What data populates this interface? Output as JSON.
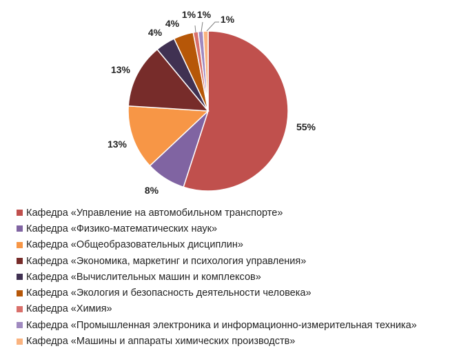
{
  "chart_data": {
    "type": "pie",
    "title": "",
    "legend_position": "bottom",
    "slices": [
      {
        "label": "Кафедра «Управление на автомобильном транспорте»",
        "value": 55,
        "value_label": "55%",
        "color": "#c0504d"
      },
      {
        "label": "Кафедра «Физико-математических наук»",
        "value": 8,
        "value_label": "8%",
        "color": "#8064a2"
      },
      {
        "label": "Кафедра «Общеобразовательных дисциплин»",
        "value": 13,
        "value_label": "13%",
        "color": "#f79646"
      },
      {
        "label": "Кафедра «Экономика, маркетинг и психология управления»",
        "value": 13,
        "value_label": "13%",
        "color": "#772c2a"
      },
      {
        "label": "Кафедра «Вычислительных машин и комплексов»",
        "value": 4,
        "value_label": "4%",
        "color": "#403152"
      },
      {
        "label": "Кафедра «Экология и безопасность деятельности человека»",
        "value": 4,
        "value_label": "4%",
        "color": "#b65708"
      },
      {
        "label": "Кафедра «Химия»",
        "value": 1,
        "value_label": "1%",
        "color": "#d9706b"
      },
      {
        "label": "Кафедра «Промышленная электроника и информационно-измерительная техника»",
        "value": 1,
        "value_label": "1%",
        "color": "#a08ac0"
      },
      {
        "label": "Кафедра «Машины и аппараты химических производств»",
        "value": 1,
        "value_label": "1%",
        "color": "#fab37f"
      }
    ]
  }
}
